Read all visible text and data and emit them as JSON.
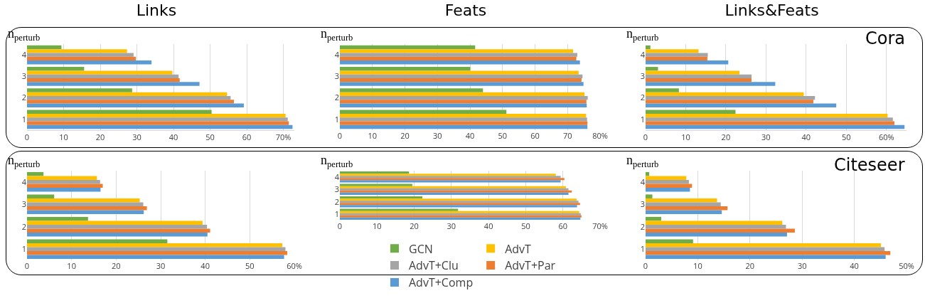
{
  "chart_data": [
    {
      "type": "bar",
      "orientation": "horizontal",
      "title": "Links",
      "ylabel": "n$_{perturb}$",
      "categories": [
        "4",
        "3",
        "2",
        "1"
      ],
      "xlim": [
        0,
        73
      ],
      "xticks": [
        0,
        10,
        20,
        30,
        40,
        50,
        60,
        {
          "value": 70,
          "label": "70%"
        }
      ],
      "grid": "x",
      "series": [
        {
          "color": "#70ad47",
          "values": [
            9.4,
            15.6,
            28.7,
            50.4
          ]
        },
        {
          "color": "#ffc000",
          "values": [
            27.3,
            39.7,
            54.6,
            70.6
          ]
        },
        {
          "color": "#a5a5a5",
          "values": [
            29.1,
            41.4,
            55.6,
            71.2
          ]
        },
        {
          "color": "#ed7d31",
          "values": [
            29.7,
            41.7,
            56.5,
            71.5
          ]
        },
        {
          "color": "#5b9bd5",
          "values": [
            34.0,
            47.1,
            59.2,
            72.5
          ]
        }
      ]
    },
    {
      "type": "bar",
      "orientation": "horizontal",
      "title": "Feats",
      "ylabel": "n$_{perturb}$",
      "categories": [
        "4",
        "3",
        "2",
        "1"
      ],
      "xlim": [
        0,
        80
      ],
      "xticks": [
        0,
        10,
        20,
        30,
        40,
        50,
        60,
        70,
        {
          "value": 80,
          "label": "80%"
        }
      ],
      "grid": "x",
      "series": [
        {
          "color": "#70ad47",
          "values": [
            41.6,
            40.1,
            44.0,
            51.2
          ]
        },
        {
          "color": "#ffc000",
          "values": [
            71.7,
            73.4,
            75.2,
            75.7
          ]
        },
        {
          "color": "#a5a5a5",
          "values": [
            73.0,
            74.6,
            76.2,
            76.0
          ]
        },
        {
          "color": "#ed7d31",
          "values": [
            72.7,
            74.3,
            75.8,
            76.1
          ]
        },
        {
          "color": "#5b9bd5",
          "values": [
            73.8,
            74.9,
            75.9,
            76.1
          ]
        }
      ]
    },
    {
      "type": "bar",
      "orientation": "horizontal",
      "title": "Links&Feats",
      "ylabel": "n$_{perturb}$",
      "annotations": [
        "Cora"
      ],
      "categories": [
        "4",
        "3",
        "2",
        "1"
      ],
      "xlim": [
        0,
        65
      ],
      "xticks": [
        0,
        10,
        20,
        30,
        40,
        50,
        {
          "value": 60,
          "label": "60%"
        }
      ],
      "grid": "x",
      "series": [
        {
          "color": "#70ad47",
          "values": [
            1.2,
            3.1,
            8.3,
            22.4
          ]
        },
        {
          "color": "#ffc000",
          "values": [
            13.2,
            23.4,
            39.4,
            60.3
          ]
        },
        {
          "color": "#a5a5a5",
          "values": [
            15.5,
            26.4,
            42.2,
            61.6
          ]
        },
        {
          "color": "#ed7d31",
          "values": [
            15.4,
            26.4,
            41.8,
            62.0
          ]
        },
        {
          "color": "#5b9bd5",
          "values": [
            20.6,
            32.3,
            47.5,
            64.5
          ]
        }
      ]
    },
    {
      "type": "bar",
      "orientation": "horizontal",
      "ylabel": "n$_{perturb}$",
      "categories": [
        "4",
        "3",
        "2",
        "1"
      ],
      "xlim": [
        0,
        60
      ],
      "xticks": [
        0,
        10,
        20,
        30,
        40,
        50,
        {
          "value": 60,
          "label": "60%"
        }
      ],
      "grid": "x",
      "series": [
        {
          "color": "#70ad47",
          "values": [
            3.7,
            6.1,
            13.7,
            31.5
          ]
        },
        {
          "color": "#ffc000",
          "values": [
            15.7,
            25.3,
            39.4,
            57.3
          ]
        },
        {
          "color": "#a5a5a5",
          "values": [
            16.4,
            26.1,
            40.4,
            58.0
          ]
        },
        {
          "color": "#ed7d31",
          "values": [
            17.0,
            26.9,
            41.1,
            58.4
          ]
        },
        {
          "color": "#5b9bd5",
          "values": [
            16.5,
            26.2,
            40.5,
            57.7
          ]
        }
      ]
    },
    {
      "type": "bar",
      "orientation": "horizontal",
      "ylabel": "n$_{perturb}$",
      "categories": [
        "4",
        "3",
        "2",
        "1"
      ],
      "xlim": [
        0,
        70
      ],
      "xticks": [
        0,
        10,
        20,
        30,
        40,
        50,
        60,
        {
          "value": 70,
          "label": "70%"
        }
      ],
      "grid": "x",
      "legend": "bottom",
      "series": [
        {
          "name": "GCN",
          "color": "#70ad47",
          "values": [
            18.6,
            19.5,
            22.2,
            31.8
          ]
        },
        {
          "name": "AdvT",
          "color": "#ffc000",
          "values": [
            58.1,
            60.8,
            63.7,
            64.4
          ]
        },
        {
          "name": "AdvT+Clu",
          "color": "#a5a5a5",
          "values": [
            59.4,
            61.5,
            64.2,
            64.8
          ]
        },
        {
          "name": "AdvT+Par",
          "color": "#ed7d31",
          "values": [
            60.4,
            62.4,
            64.6,
            65.0
          ]
        },
        {
          "name": "AdvT+Comp",
          "color": "#5b9bd5",
          "values": [
            59.4,
            61.5,
            63.8,
            64.7
          ]
        }
      ]
    },
    {
      "type": "bar",
      "orientation": "horizontal",
      "ylabel": "n$_{perturb}$",
      "annotations": [
        "Citeseer"
      ],
      "categories": [
        "4",
        "3",
        "2",
        "1"
      ],
      "xlim": [
        0,
        50
      ],
      "xticks": [
        0,
        10,
        20,
        30,
        40,
        {
          "value": 50,
          "label": "50%"
        }
      ],
      "grid": "x",
      "series": [
        {
          "color": "#70ad47",
          "values": [
            0.7,
            1.3,
            3.0,
            9.1
          ]
        },
        {
          "color": "#ffc000",
          "values": [
            7.8,
            13.7,
            26.2,
            45.1
          ]
        },
        {
          "color": "#a5a5a5",
          "values": [
            8.3,
            14.4,
            26.9,
            45.8
          ]
        },
        {
          "color": "#ed7d31",
          "values": [
            8.9,
            15.7,
            28.6,
            46.9
          ]
        },
        {
          "color": "#5b9bd5",
          "values": [
            8.5,
            14.6,
            27.1,
            46.0
          ]
        }
      ]
    }
  ]
}
